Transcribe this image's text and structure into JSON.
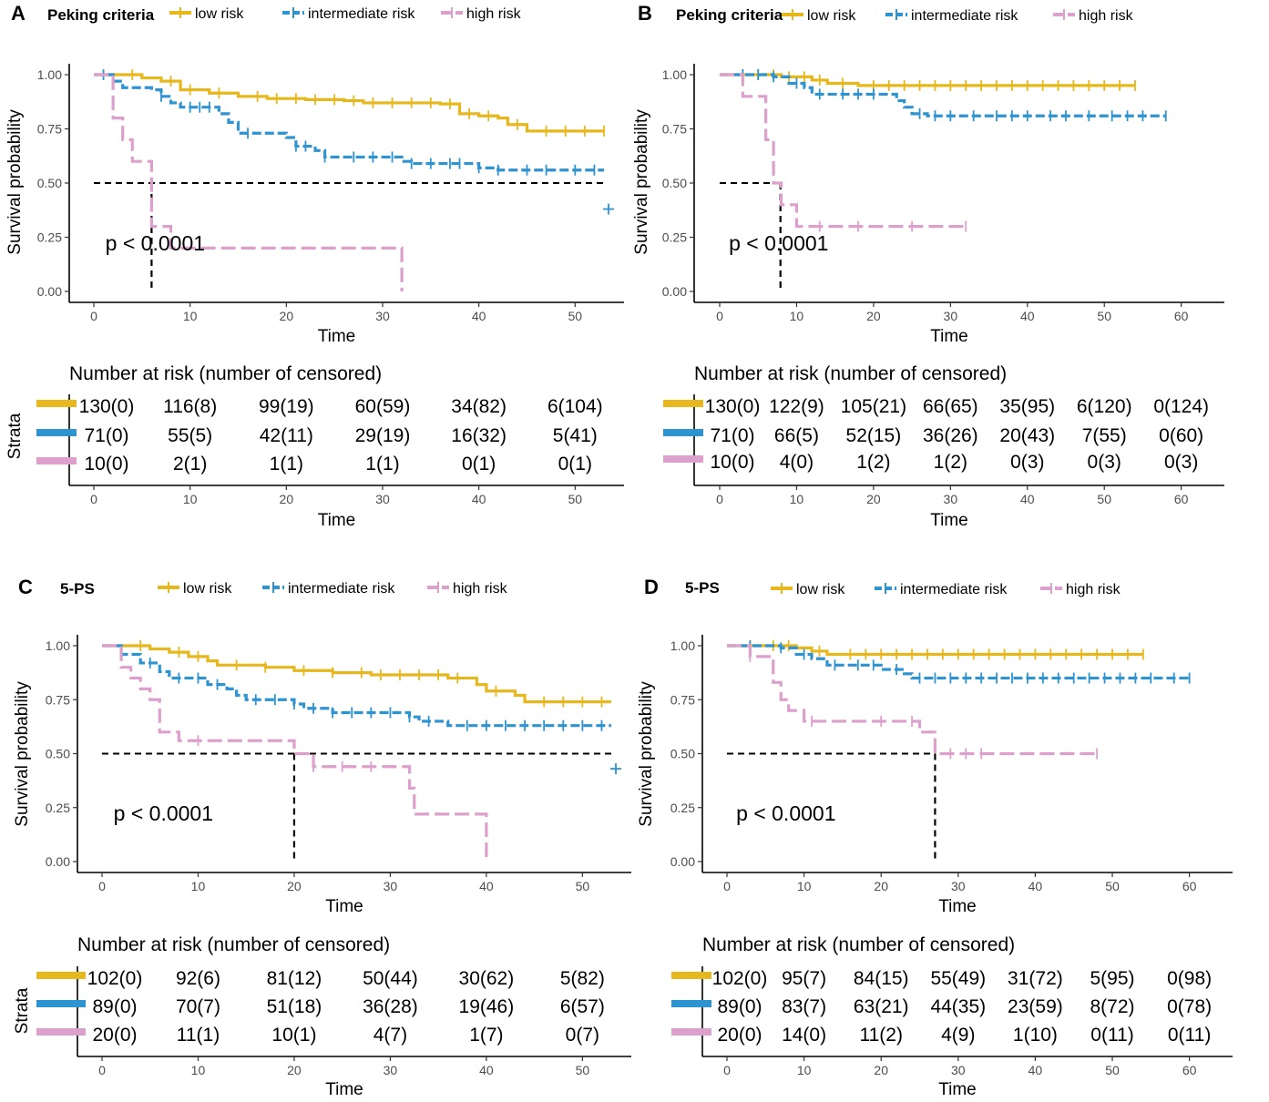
{
  "colors": {
    "low": "#E6B81E",
    "intermediate": "#2E93D1",
    "high": "#DDA0CC"
  },
  "chart_data": [
    {
      "type": "line",
      "panel": "A",
      "title": "Peking criteria",
      "legend": [
        "low risk",
        "intermediate risk",
        "high risk"
      ],
      "xlabel": "Time",
      "ylabel": "Survival probability",
      "xlim": [
        0,
        53
      ],
      "ylim": [
        0,
        1
      ],
      "xticks": [
        0,
        10,
        20,
        30,
        40,
        50
      ],
      "yticks": [
        "0.00",
        "0.25",
        "0.50",
        "0.75",
        "1.00"
      ],
      "pvalue": "p < 0.0001",
      "median_lines": [
        6
      ],
      "series": [
        {
          "name": "low risk",
          "key": "low",
          "end": 53,
          "steps": [
            [
              0,
              1
            ],
            [
              3,
              1
            ],
            [
              5,
              0.985
            ],
            [
              7,
              0.97
            ],
            [
              9,
              0.93
            ],
            [
              12,
              0.915
            ],
            [
              15,
              0.9
            ],
            [
              18,
              0.89
            ],
            [
              22,
              0.885
            ],
            [
              26,
              0.88
            ],
            [
              28,
              0.87
            ],
            [
              36,
              0.865
            ],
            [
              38,
              0.82
            ],
            [
              40,
              0.81
            ],
            [
              42,
              0.8
            ],
            [
              43,
              0.77
            ],
            [
              45,
              0.74
            ]
          ],
          "censor": [
            4,
            8,
            10,
            13,
            17,
            19,
            21,
            23,
            25,
            27,
            29,
            31,
            33,
            35,
            37,
            39,
            41,
            44,
            47,
            49,
            51,
            53
          ]
        },
        {
          "name": "intermediate risk",
          "key": "intermediate",
          "end": 53,
          "steps": [
            [
              0,
              1
            ],
            [
              2,
              0.97
            ],
            [
              3,
              0.94
            ],
            [
              6,
              0.93
            ],
            [
              7,
              0.9
            ],
            [
              8,
              0.87
            ],
            [
              9,
              0.85
            ],
            [
              13,
              0.82
            ],
            [
              14,
              0.78
            ],
            [
              15,
              0.73
            ],
            [
              20,
              0.71
            ],
            [
              21,
              0.67
            ],
            [
              23,
              0.65
            ],
            [
              24,
              0.62
            ],
            [
              32,
              0.6
            ],
            [
              33,
              0.59
            ],
            [
              40,
              0.57
            ],
            [
              42,
              0.56
            ]
          ],
          "censor": [
            1,
            7,
            10,
            11,
            12,
            16,
            21,
            22,
            24,
            27,
            29,
            31,
            33,
            35,
            37,
            38,
            40,
            42,
            45,
            47,
            50,
            52
          ],
          "extra": [
            [
              53,
              0.38
            ]
          ]
        },
        {
          "name": "high risk",
          "key": "high",
          "end": 32,
          "steps": [
            [
              0,
              1
            ],
            [
              2,
              0.8
            ],
            [
              3,
              0.7
            ],
            [
              4,
              0.6
            ],
            [
              6,
              0.3
            ],
            [
              8,
              0.2
            ],
            [
              32,
              0
            ]
          ],
          "censor": []
        }
      ],
      "risk_table": {
        "title": "Number at risk (number of censored)",
        "xlabel": "Time",
        "strata_label": "Strata",
        "times": [
          0,
          10,
          20,
          30,
          40,
          50
        ],
        "rows": [
          [
            "130(0)",
            "116(8)",
            "99(19)",
            "60(59)",
            "34(82)",
            "6(104)"
          ],
          [
            "71(0)",
            "55(5)",
            "42(11)",
            "29(19)",
            "16(32)",
            "5(41)"
          ],
          [
            "10(0)",
            "2(1)",
            "1(1)",
            "1(1)",
            "0(1)",
            "0(1)"
          ]
        ]
      }
    },
    {
      "type": "line",
      "panel": "B",
      "title": "Peking criteria",
      "legend": [
        "low risk",
        "intermediate risk",
        "high risk"
      ],
      "xlabel": "Time",
      "ylabel": "Survival probability",
      "xlim": [
        0,
        63
      ],
      "ylim": [
        0,
        1
      ],
      "xticks": [
        0,
        10,
        20,
        30,
        40,
        50,
        60
      ],
      "yticks": [
        "0.00",
        "0.25",
        "0.50",
        "0.75",
        "1.00"
      ],
      "pvalue": "p < 0.0001",
      "median_lines": [
        7.9
      ],
      "series": [
        {
          "name": "low risk",
          "key": "low",
          "end": 54,
          "steps": [
            [
              0,
              1
            ],
            [
              8,
              0.99
            ],
            [
              12,
              0.975
            ],
            [
              14,
              0.96
            ],
            [
              18,
              0.95
            ]
          ],
          "censor": [
            3,
            5,
            7,
            9,
            11,
            13,
            16,
            20,
            22,
            24,
            26,
            28,
            30,
            32,
            34,
            36,
            38,
            40,
            42,
            44,
            46,
            48,
            50,
            52,
            54
          ]
        },
        {
          "name": "intermediate risk",
          "key": "intermediate",
          "end": 58,
          "steps": [
            [
              0,
              1
            ],
            [
              7,
              0.99
            ],
            [
              9,
              0.96
            ],
            [
              11,
              0.94
            ],
            [
              12,
              0.91
            ],
            [
              23,
              0.88
            ],
            [
              24,
              0.85
            ],
            [
              25,
              0.82
            ],
            [
              27,
              0.81
            ]
          ],
          "censor": [
            3,
            5,
            7,
            10,
            13,
            16,
            18,
            20,
            26,
            28,
            30,
            33,
            36,
            38,
            40,
            43,
            45,
            48,
            51,
            53,
            55,
            58
          ]
        },
        {
          "name": "high risk",
          "key": "high",
          "end": 32,
          "steps": [
            [
              0,
              1
            ],
            [
              3,
              0.9
            ],
            [
              6,
              0.7
            ],
            [
              7,
              0.5
            ],
            [
              8,
              0.4
            ],
            [
              10,
              0.3
            ]
          ],
          "censor": [
            13,
            18,
            25,
            32
          ]
        }
      ],
      "risk_table": {
        "title": "Number at risk (number of censored)",
        "xlabel": "Time",
        "strata_label": "",
        "times": [
          0,
          10,
          20,
          30,
          40,
          50,
          60
        ],
        "rows": [
          [
            "130(0)",
            "122(9)",
            "105(21)",
            "66(65)",
            "35(95)",
            "6(120)",
            "0(124)"
          ],
          [
            "71(0)",
            "66(5)",
            "52(15)",
            "36(26)",
            "20(43)",
            "7(55)",
            "0(60)"
          ],
          [
            "10(0)",
            "4(0)",
            "1(2)",
            "1(2)",
            "0(3)",
            "0(3)",
            "0(3)"
          ]
        ]
      }
    },
    {
      "type": "line",
      "panel": "C",
      "title": "5-PS",
      "legend": [
        "low risk",
        "intermediate risk",
        "high risk"
      ],
      "xlabel": "Time",
      "ylabel": "Survival probability",
      "xlim": [
        0,
        53
      ],
      "ylim": [
        0,
        1
      ],
      "xticks": [
        0,
        10,
        20,
        30,
        40,
        50
      ],
      "yticks": [
        "0.00",
        "0.25",
        "0.50",
        "0.75",
        "1.00"
      ],
      "pvalue": "p < 0.0001",
      "median_lines": [
        20
      ],
      "series": [
        {
          "name": "low risk",
          "key": "low",
          "end": 53,
          "steps": [
            [
              0,
              1
            ],
            [
              5,
              0.985
            ],
            [
              7,
              0.97
            ],
            [
              9,
              0.95
            ],
            [
              11,
              0.93
            ],
            [
              12,
              0.91
            ],
            [
              17,
              0.9
            ],
            [
              20,
              0.885
            ],
            [
              24,
              0.875
            ],
            [
              28,
              0.865
            ],
            [
              36,
              0.85
            ],
            [
              39,
              0.82
            ],
            [
              40,
              0.79
            ],
            [
              43,
              0.77
            ],
            [
              44,
              0.74
            ]
          ],
          "censor": [
            4,
            8,
            10,
            14,
            17,
            21,
            24,
            27,
            29,
            31,
            33,
            35,
            37,
            41,
            46,
            48,
            50,
            52
          ]
        },
        {
          "name": "intermediate risk",
          "key": "intermediate",
          "end": 53,
          "steps": [
            [
              0,
              1
            ],
            [
              2,
              0.96
            ],
            [
              4,
              0.92
            ],
            [
              6,
              0.88
            ],
            [
              7,
              0.85
            ],
            [
              11,
              0.82
            ],
            [
              13,
              0.8
            ],
            [
              14,
              0.77
            ],
            [
              15,
              0.75
            ],
            [
              20,
              0.73
            ],
            [
              21,
              0.71
            ],
            [
              24,
              0.69
            ],
            [
              32,
              0.67
            ],
            [
              33,
              0.65
            ],
            [
              36,
              0.63
            ]
          ],
          "censor": [
            2,
            5,
            8,
            10,
            12,
            16,
            18,
            20,
            22,
            24,
            26,
            28,
            30,
            32,
            34,
            38,
            40,
            42,
            44,
            46,
            48,
            50,
            52
          ],
          "extra": [
            [
              53,
              0.43
            ]
          ]
        },
        {
          "name": "high risk",
          "key": "high",
          "end": 40,
          "steps": [
            [
              0,
              1
            ],
            [
              2,
              0.9
            ],
            [
              3,
              0.85
            ],
            [
              4,
              0.8
            ],
            [
              5,
              0.75
            ],
            [
              6,
              0.6
            ],
            [
              8,
              0.56
            ],
            [
              20,
              0.5
            ],
            [
              22,
              0.44
            ],
            [
              32,
              0.34
            ],
            [
              32.5,
              0.22
            ],
            [
              40,
              0
            ]
          ],
          "censor": [
            10,
            22,
            25,
            28
          ]
        }
      ],
      "risk_table": {
        "title": "Number at risk (number of censored)",
        "xlabel": "Time",
        "strata_label": "Strata",
        "times": [
          0,
          10,
          20,
          30,
          40,
          50
        ],
        "rows": [
          [
            "102(0)",
            "92(6)",
            "81(12)",
            "50(44)",
            "30(62)",
            "5(82)"
          ],
          [
            "89(0)",
            "70(7)",
            "51(18)",
            "36(28)",
            "19(46)",
            "6(57)"
          ],
          [
            "20(0)",
            "11(1)",
            "10(1)",
            "4(7)",
            "1(7)",
            "0(7)"
          ]
        ]
      }
    },
    {
      "type": "line",
      "panel": "D",
      "title": "5-PS",
      "legend": [
        "low risk",
        "intermediate risk",
        "high risk"
      ],
      "xlabel": "Time",
      "ylabel": "Survival probability",
      "xlim": [
        0,
        63
      ],
      "ylim": [
        0,
        1
      ],
      "xticks": [
        0,
        10,
        20,
        30,
        40,
        50,
        60
      ],
      "yticks": [
        "0.00",
        "0.25",
        "0.50",
        "0.75",
        "1.00"
      ],
      "pvalue": "p < 0.0001",
      "median_lines": [
        27
      ],
      "series": [
        {
          "name": "low risk",
          "key": "low",
          "end": 54,
          "steps": [
            [
              0,
              1
            ],
            [
              9,
              0.99
            ],
            [
              11,
              0.975
            ],
            [
              13,
              0.96
            ]
          ],
          "censor": [
            3,
            6,
            8,
            12,
            16,
            18,
            20,
            22,
            24,
            26,
            28,
            30,
            32,
            34,
            36,
            38,
            40,
            42,
            44,
            46,
            48,
            50,
            52,
            54
          ]
        },
        {
          "name": "intermediate risk",
          "key": "intermediate",
          "end": 60,
          "steps": [
            [
              0,
              1
            ],
            [
              7,
              0.99
            ],
            [
              9,
              0.96
            ],
            [
              11,
              0.94
            ],
            [
              13,
              0.91
            ],
            [
              20,
              0.89
            ],
            [
              23,
              0.87
            ],
            [
              24,
              0.85
            ]
          ],
          "censor": [
            3,
            7,
            10,
            14,
            17,
            19,
            22,
            25,
            27,
            29,
            31,
            33,
            35,
            37,
            39,
            41,
            43,
            45,
            47,
            49,
            51,
            53,
            55,
            58,
            60
          ]
        },
        {
          "name": "high risk",
          "key": "high",
          "end": 48,
          "steps": [
            [
              0,
              1
            ],
            [
              3,
              0.95
            ],
            [
              6,
              0.83
            ],
            [
              7,
              0.75
            ],
            [
              8,
              0.7
            ],
            [
              10,
              0.65
            ],
            [
              25,
              0.6
            ],
            [
              27,
              0.5
            ]
          ],
          "censor": [
            3,
            11,
            20,
            24,
            29,
            31,
            33,
            48
          ]
        }
      ],
      "risk_table": {
        "title": "Number at risk (number of censored)",
        "xlabel": "Time",
        "strata_label": "",
        "times": [
          0,
          10,
          20,
          30,
          40,
          50,
          60
        ],
        "rows": [
          [
            "102(0)",
            "95(7)",
            "84(15)",
            "55(49)",
            "31(72)",
            "5(95)",
            "0(98)"
          ],
          [
            "89(0)",
            "83(7)",
            "63(21)",
            "44(35)",
            "23(59)",
            "8(72)",
            "0(78)"
          ],
          [
            "20(0)",
            "14(0)",
            "11(2)",
            "4(9)",
            "1(10)",
            "0(11)",
            "0(11)"
          ]
        ]
      }
    }
  ]
}
